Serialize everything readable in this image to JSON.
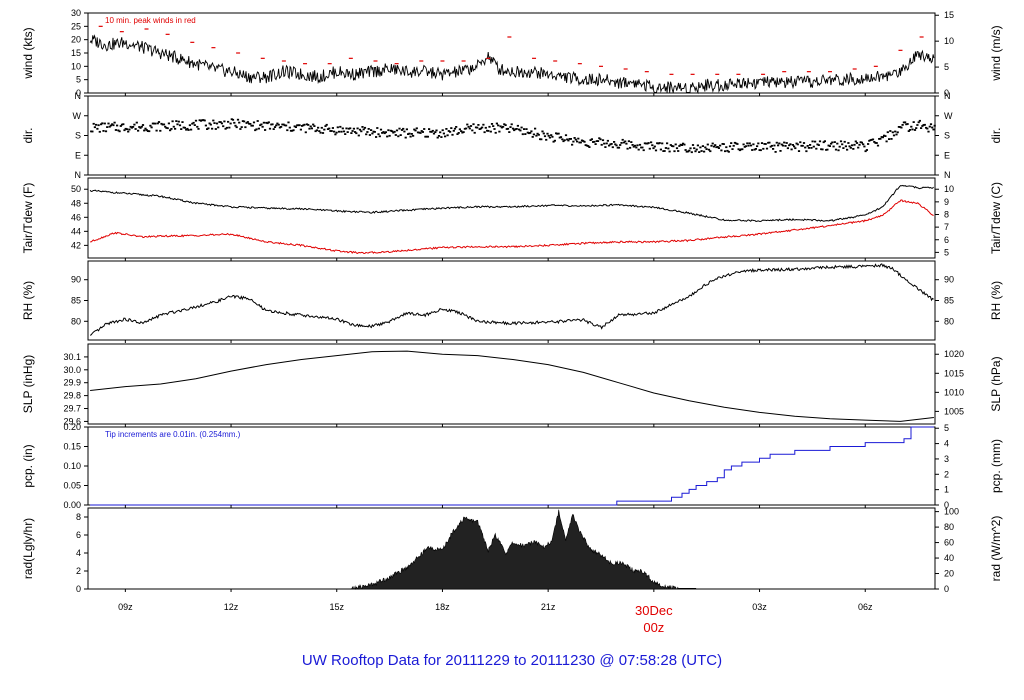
{
  "footer_title": "UW Rooftop Data for 20111229  to  20111230 @ 07:58:28  (UTC)",
  "colors": {
    "primary": "#000000",
    "wind_peak": "#e00000",
    "dewpoint": "#e00000",
    "precip": "#1a1ad6",
    "footer": "#1a1ad6",
    "date_marker": "#e00000"
  },
  "x_axis": {
    "unit": "UTC hour",
    "range": [
      7.94,
      31.98
    ],
    "ticks": [
      {
        "t": 9,
        "label": "09z"
      },
      {
        "t": 12,
        "label": "12z"
      },
      {
        "t": 15,
        "label": "15z"
      },
      {
        "t": 18,
        "label": "18z"
      },
      {
        "t": 21,
        "label": "21z"
      },
      {
        "t": 27,
        "label": "03z"
      },
      {
        "t": 30,
        "label": "06z"
      }
    ],
    "date_marker": {
      "t": 24,
      "date_label": "30Dec",
      "hour_label": "00z"
    }
  },
  "chart_data": [
    {
      "type": "line",
      "panel": "wind",
      "ylabel_left": "wind (kts)",
      "ylabel_right": "wind (m/s)",
      "annotation": "10 min. peak winds in red",
      "ylim": [
        0,
        30
      ],
      "yticks_left": [
        "0",
        "5",
        "10",
        "15",
        "20",
        "25",
        "30"
      ],
      "yticks_right": [
        "0",
        "5",
        "10",
        "15"
      ],
      "right_scale_factor": 0.5144,
      "series": [
        {
          "role": "speed",
          "color": "#000000",
          "x": [
            8,
            8.5,
            9,
            9.5,
            10,
            10.5,
            11,
            11.5,
            12,
            12.5,
            13,
            13.5,
            14,
            14.5,
            15,
            15.5,
            16,
            16.5,
            17,
            17.5,
            18,
            18.5,
            19,
            19.3,
            19.6,
            20,
            20.5,
            21,
            21.5,
            22,
            22.5,
            23,
            23.5,
            24,
            24.5,
            25,
            25.5,
            26,
            26.5,
            27,
            27.5,
            28,
            28.5,
            29,
            29.5,
            30,
            30.5,
            31,
            31.5,
            31.95
          ],
          "y": [
            20,
            18,
            19,
            17,
            15,
            13,
            11,
            9,
            8,
            6,
            6,
            8,
            7,
            6,
            8,
            7,
            8,
            9,
            8,
            8,
            7,
            8,
            10,
            14,
            9,
            8,
            8,
            7,
            6,
            5,
            5,
            4,
            4,
            2,
            2,
            2,
            3,
            3,
            4,
            4,
            4,
            4,
            4,
            5,
            5,
            6,
            6,
            8,
            15,
            13
          ]
        },
        {
          "role": "peak",
          "color": "#e00000",
          "x": [
            8.3,
            8.9,
            9.6,
            10.2,
            10.9,
            11.5,
            12.2,
            12.9,
            13.5,
            14.1,
            14.8,
            15.4,
            16.1,
            16.7,
            17.4,
            18,
            18.6,
            19.3,
            19.9,
            20.6,
            21.2,
            21.9,
            22.5,
            23.2,
            23.8,
            24.5,
            25.1,
            25.8,
            26.4,
            27.1,
            27.7,
            28.4,
            29,
            29.7,
            30.3,
            31,
            31.6
          ],
          "y": [
            25,
            23,
            24,
            22,
            19,
            17,
            15,
            13,
            12,
            11,
            11,
            13,
            12,
            11,
            12,
            12,
            12,
            13,
            21,
            13,
            12,
            11,
            10,
            9,
            8,
            7,
            7,
            7,
            7,
            7,
            8,
            8,
            8,
            9,
            10,
            16,
            21
          ]
        }
      ]
    },
    {
      "type": "scatter",
      "panel": "direction",
      "ylabel_left": "dir.",
      "ylabel_right": "dir.",
      "yticks": [
        "N",
        "W",
        "S",
        "E",
        "N"
      ],
      "ylim": [
        0,
        360
      ],
      "ytick_values": [
        360,
        270,
        180,
        90,
        0
      ],
      "series": [
        {
          "role": "direction",
          "color": "#000000",
          "x": [
            8,
            9,
            10,
            11,
            12,
            13,
            14,
            15,
            16,
            17,
            18,
            19,
            20,
            21,
            22,
            23,
            24,
            25,
            26,
            27,
            28,
            29,
            30,
            30.5,
            31,
            31.5,
            31.95
          ],
          "y": [
            215,
            218,
            222,
            228,
            232,
            222,
            215,
            205,
            195,
            190,
            192,
            215,
            210,
            175,
            150,
            140,
            130,
            125,
            125,
            125,
            128,
            135,
            130,
            160,
            218,
            225,
            215
          ]
        }
      ]
    },
    {
      "type": "line",
      "panel": "temperature",
      "ylabel_left": "Tair/Tdew (F)",
      "ylabel_right": "Tair/Tdew (C)",
      "ylim": [
        40.2,
        51.6
      ],
      "yticks_left": [
        "42",
        "44",
        "46",
        "48",
        "50"
      ],
      "yticks_right": [
        "5",
        "6",
        "7",
        "8",
        "9",
        "10"
      ],
      "series": [
        {
          "role": "air temperature",
          "color": "#000000",
          "x": [
            8,
            9,
            10,
            11,
            12,
            13,
            14,
            15,
            16,
            17,
            18,
            19,
            20,
            21,
            22,
            23,
            24,
            25,
            26,
            27,
            28,
            29,
            30,
            30.5,
            31,
            31.5,
            31.95
          ],
          "y": [
            49.8,
            49.4,
            49,
            48,
            47.5,
            47.3,
            47.2,
            46.9,
            46.7,
            47,
            47.3,
            47.5,
            47.5,
            47.7,
            47.6,
            47.8,
            47.4,
            46.6,
            45.6,
            45.5,
            45.7,
            45.5,
            46.3,
            47.5,
            50.6,
            50.2,
            50.2
          ]
        },
        {
          "role": "dew point",
          "color": "#e00000",
          "x": [
            8,
            8.7,
            9.5,
            10,
            11,
            12,
            13,
            14,
            15,
            15.7,
            16.5,
            17,
            18,
            19,
            20,
            21,
            22,
            23,
            24,
            25,
            26,
            27,
            28,
            29,
            30,
            30.5,
            31,
            31.5,
            31.95
          ],
          "y": [
            42.5,
            43.8,
            43.2,
            43.3,
            43.4,
            43.6,
            42.5,
            42,
            41.2,
            40.9,
            41.1,
            41.3,
            41.7,
            41.8,
            41.8,
            42,
            42.3,
            42.5,
            42.5,
            42.7,
            43.2,
            43.6,
            44.2,
            44.8,
            45.5,
            46.3,
            48.4,
            48,
            46.2
          ]
        }
      ]
    },
    {
      "type": "line",
      "panel": "humidity",
      "ylabel_left": "RH (%)",
      "ylabel_right": "RH (%)",
      "ylim": [
        75.5,
        94.5
      ],
      "yticks_left": [
        "80",
        "85",
        "90"
      ],
      "yticks_right": [
        "80",
        "85",
        "90"
      ],
      "series": [
        {
          "role": "relative humidity",
          "color": "#000000",
          "x": [
            8,
            8.5,
            9,
            9.5,
            10,
            10.5,
            11,
            11.5,
            12,
            12.5,
            13,
            14,
            15,
            15.5,
            16,
            16.5,
            17,
            17.5,
            18,
            18.5,
            19,
            20,
            21,
            22,
            22.5,
            23,
            24,
            25,
            25.5,
            26,
            26.5,
            27,
            28,
            29,
            30,
            30.5,
            30.8,
            31.3,
            31.95
          ],
          "y": [
            76.5,
            79.5,
            80.5,
            79.5,
            81.5,
            82.5,
            83.5,
            84.5,
            86,
            85.5,
            82.5,
            81.5,
            80.5,
            79,
            78.8,
            80,
            82,
            81.5,
            83,
            82,
            80,
            79.5,
            79.8,
            80.3,
            78.5,
            81.5,
            82,
            86,
            89,
            91,
            92,
            92.3,
            92.5,
            93,
            93.2,
            93.5,
            92.5,
            89,
            85
          ]
        }
      ]
    },
    {
      "type": "line",
      "panel": "pressure",
      "ylabel_left": "SLP (inHg)",
      "ylabel_right": "SLP (hPa)",
      "ylim": [
        29.58,
        30.2
      ],
      "yticks_left": [
        "29.6",
        "29.7",
        "29.8",
        "29.9",
        "30.0",
        "30.1"
      ],
      "yticks_right": [
        "1005",
        "1010",
        "1015",
        "1020"
      ],
      "series": [
        {
          "role": "sea level pressure",
          "color": "#000000",
          "x": [
            8,
            9,
            10,
            11,
            12,
            13,
            14,
            15,
            16,
            17,
            18,
            19,
            20,
            21,
            22,
            23,
            24,
            25,
            26,
            27,
            28,
            29,
            30,
            31,
            31.95
          ],
          "y": [
            29.84,
            29.87,
            29.89,
            29.93,
            29.99,
            30.04,
            30.08,
            30.11,
            30.14,
            30.145,
            30.12,
            30.11,
            30.08,
            30.04,
            29.98,
            29.9,
            29.82,
            29.76,
            29.71,
            29.67,
            29.64,
            29.62,
            29.61,
            29.6,
            29.63
          ]
        }
      ]
    },
    {
      "type": "line",
      "panel": "precipitation",
      "ylabel_left": "pcp. (in)",
      "ylabel_right": "pcp. (mm)",
      "annotation": "Tip increments are 0.01in. (0.254mm.)",
      "ylim": [
        0,
        0.2
      ],
      "yticks_left": [
        "0.00",
        "0.05",
        "0.10",
        "0.15",
        "0.20"
      ],
      "yticks_right": [
        "0",
        "1",
        "2",
        "3",
        "4",
        "5"
      ],
      "series": [
        {
          "role": "accumulated precipitation",
          "color": "#1a1ad6",
          "x": [
            8,
            22.9,
            22.95,
            24.2,
            24.5,
            24.8,
            25,
            25.2,
            25.5,
            25.8,
            26,
            26.2,
            26.5,
            27,
            27.3,
            28,
            29,
            30,
            30.8,
            31.1,
            31.3,
            31.95
          ],
          "y": [
            0,
            0,
            0.01,
            0.01,
            0.02,
            0.03,
            0.04,
            0.05,
            0.06,
            0.07,
            0.09,
            0.1,
            0.11,
            0.12,
            0.13,
            0.14,
            0.15,
            0.16,
            0.16,
            0.17,
            0.2,
            0.2
          ]
        }
      ]
    },
    {
      "type": "area",
      "panel": "radiation",
      "ylabel_left": "rad(Lgly/hr)",
      "ylabel_right": "rad (W/m^2)",
      "ylim": [
        0,
        9
      ],
      "yticks_left": [
        "0",
        "2",
        "4",
        "6",
        "8"
      ],
      "yticks_right": [
        "0",
        "20",
        "40",
        "60",
        "80",
        "100"
      ],
      "series": [
        {
          "role": "solar radiation",
          "color": "#000000",
          "x": [
            15.4,
            16,
            16.5,
            17,
            17.3,
            17.6,
            18,
            18.3,
            18.6,
            19,
            19.3,
            19.5,
            19.8,
            20,
            20.3,
            20.6,
            20.9,
            21.1,
            21.3,
            21.5,
            21.7,
            21.9,
            22.2,
            22.5,
            22.8,
            23.1,
            23.4,
            23.7,
            24,
            24.3,
            24.7
          ],
          "y": [
            0,
            0.5,
            1.3,
            2.4,
            3.5,
            4.6,
            4.3,
            6.4,
            7.8,
            7.5,
            4.3,
            6,
            4,
            5.1,
            4.8,
            5.3,
            4.7,
            5.3,
            8.6,
            5.6,
            8.2,
            6.4,
            4.4,
            3.8,
            2.8,
            2.9,
            2.1,
            1.9,
            0.8,
            0.3,
            0
          ]
        }
      ]
    }
  ]
}
